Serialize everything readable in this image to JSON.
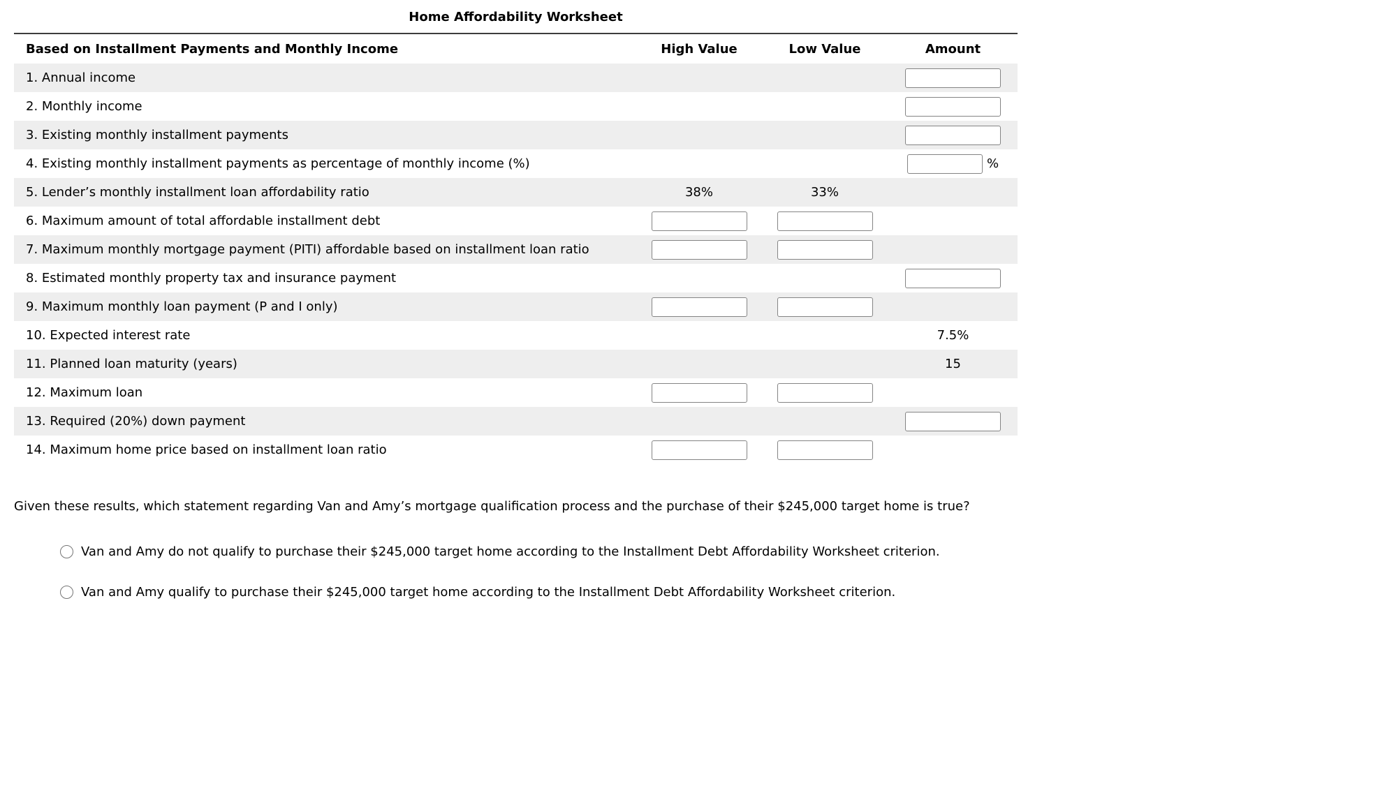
{
  "title": "Home Affordability Worksheet",
  "table": {
    "header": {
      "label": "Based on Installment Payments and Monthly Income",
      "high": "High Value",
      "low": "Low Value",
      "amount": "Amount"
    },
    "rows": [
      {
        "label": "1. Annual income",
        "amount": {
          "type": "input",
          "value": ""
        }
      },
      {
        "label": "2. Monthly income",
        "amount": {
          "type": "input",
          "value": ""
        }
      },
      {
        "label": "3. Existing monthly installment payments",
        "amount": {
          "type": "input",
          "value": ""
        }
      },
      {
        "label": "4. Existing monthly installment payments as percentage of monthly income (%)",
        "amount": {
          "type": "input",
          "value": "",
          "suffix": "%"
        }
      },
      {
        "label": "5. Lender’s monthly installment loan affordability ratio",
        "high": {
          "type": "text",
          "value": "38%"
        },
        "low": {
          "type": "text",
          "value": "33%"
        }
      },
      {
        "label": "6. Maximum amount of total affordable installment debt",
        "high": {
          "type": "input",
          "value": ""
        },
        "low": {
          "type": "input",
          "value": ""
        }
      },
      {
        "label": "7. Maximum monthly mortgage payment (PITI) affordable based on installment loan ratio",
        "high": {
          "type": "input",
          "value": ""
        },
        "low": {
          "type": "input",
          "value": ""
        }
      },
      {
        "label": "8. Estimated monthly property tax and insurance payment",
        "amount": {
          "type": "input",
          "value": ""
        }
      },
      {
        "label": "9. Maximum monthly loan payment (P and I only)",
        "high": {
          "type": "input",
          "value": ""
        },
        "low": {
          "type": "input",
          "value": ""
        }
      },
      {
        "label": "10. Expected interest rate",
        "amount": {
          "type": "text",
          "value": "7.5%"
        }
      },
      {
        "label": "11. Planned loan maturity (years)",
        "amount": {
          "type": "text",
          "value": "15"
        }
      },
      {
        "label": "12. Maximum loan",
        "high": {
          "type": "input",
          "value": ""
        },
        "low": {
          "type": "input",
          "value": ""
        }
      },
      {
        "label": "13. Required (20%) down payment",
        "amount": {
          "type": "input",
          "value": ""
        }
      },
      {
        "label": "14. Maximum home price based on installment loan ratio",
        "high": {
          "type": "input",
          "value": ""
        },
        "low": {
          "type": "input",
          "value": ""
        }
      }
    ]
  },
  "question": "Given these results, which statement regarding Van and Amy’s mortgage qualification process and the purchase of their $245,000 target home is true?",
  "options": [
    {
      "label": "Van and Amy do not qualify to purchase their $245,000 target home according to the Installment Debt Affordability Worksheet criterion.",
      "selected": false
    },
    {
      "label": "Van and Amy qualify to purchase their $245,000 target home according to the Installment Debt Affordability Worksheet criterion.",
      "selected": false
    }
  ],
  "colors": {
    "row_shade": "#eeeeee",
    "input_border": "#848484",
    "title_rule": "#3c3c3c"
  }
}
